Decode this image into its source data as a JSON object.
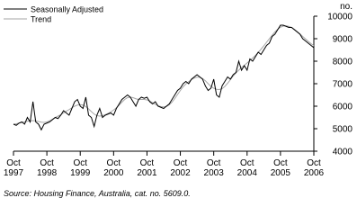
{
  "chart_data": {
    "type": "line",
    "y_label": "no.",
    "source": "Source: Housing Finance, Australia, cat. no. 5609.0.",
    "x": [
      "1997-10",
      "1997-11",
      "1997-12",
      "1998-01",
      "1998-02",
      "1998-03",
      "1998-04",
      "1998-05",
      "1998-06",
      "1998-07",
      "1998-08",
      "1998-09",
      "1998-10",
      "1998-11",
      "1998-12",
      "1999-01",
      "1999-02",
      "1999-03",
      "1999-04",
      "1999-05",
      "1999-06",
      "1999-07",
      "1999-08",
      "1999-09",
      "1999-10",
      "1999-11",
      "1999-12",
      "2000-01",
      "2000-02",
      "2000-03",
      "2000-04",
      "2000-05",
      "2000-06",
      "2000-07",
      "2000-08",
      "2000-09",
      "2000-10",
      "2000-11",
      "2000-12",
      "2001-01",
      "2001-02",
      "2001-03",
      "2001-04",
      "2001-05",
      "2001-06",
      "2001-07",
      "2001-08",
      "2001-09",
      "2001-10",
      "2001-11",
      "2001-12",
      "2002-01",
      "2002-02",
      "2002-03",
      "2002-04",
      "2002-05",
      "2002-06",
      "2002-07",
      "2002-08",
      "2002-09",
      "2002-10",
      "2002-11",
      "2002-12",
      "2003-01",
      "2003-02",
      "2003-03",
      "2003-04",
      "2003-05",
      "2003-06",
      "2003-07",
      "2003-08",
      "2003-09",
      "2003-10",
      "2003-11",
      "2003-12",
      "2004-01",
      "2004-02",
      "2004-03",
      "2004-04",
      "2004-05",
      "2004-06",
      "2004-07",
      "2004-08",
      "2004-09",
      "2004-10",
      "2004-11",
      "2004-12",
      "2005-01",
      "2005-02",
      "2005-03",
      "2005-04",
      "2005-05",
      "2005-06",
      "2005-07",
      "2005-08",
      "2005-09",
      "2005-10",
      "2005-11",
      "2005-12",
      "2006-01",
      "2006-02",
      "2006-03",
      "2006-04",
      "2006-05",
      "2006-06",
      "2006-07",
      "2006-08",
      "2006-09",
      "2006-10"
    ],
    "series": [
      {
        "name": "Seasonally Adjusted",
        "color": "#000000",
        "values": [
          5200,
          5150,
          5250,
          5300,
          5200,
          5500,
          5300,
          6200,
          5300,
          5200,
          4950,
          5200,
          5250,
          5300,
          5400,
          5500,
          5450,
          5600,
          5800,
          5700,
          5600,
          5900,
          6200,
          6300,
          6000,
          5900,
          6400,
          5600,
          5500,
          5100,
          5600,
          5900,
          5500,
          5600,
          5650,
          5700,
          5600,
          5900,
          6100,
          6300,
          6400,
          6500,
          6400,
          6200,
          6000,
          6300,
          6400,
          6350,
          6400,
          6200,
          6100,
          6200,
          6000,
          5950,
          5900,
          6000,
          6100,
          6300,
          6500,
          6700,
          6800,
          7000,
          7100,
          7000,
          7200,
          7300,
          7400,
          7300,
          7200,
          6900,
          6700,
          6800,
          7200,
          6500,
          6400,
          6900,
          7100,
          7300,
          7200,
          7400,
          7500,
          8000,
          7600,
          7800,
          7600,
          8100,
          8000,
          8200,
          8400,
          8300,
          8500,
          8700,
          8800,
          9100,
          9200,
          9400,
          9600,
          9600,
          9550,
          9500,
          9500,
          9400,
          9300,
          9200,
          9000,
          8900,
          8800,
          8700,
          8600
        ]
      },
      {
        "name": "Trend",
        "color": "#a6a6a6",
        "values": [
          5200,
          5220,
          5250,
          5280,
          5300,
          5330,
          5350,
          5360,
          5350,
          5320,
          5290,
          5280,
          5300,
          5350,
          5420,
          5500,
          5560,
          5620,
          5700,
          5780,
          5850,
          5930,
          6000,
          6050,
          6070,
          6050,
          5980,
          5880,
          5760,
          5650,
          5580,
          5560,
          5580,
          5620,
          5680,
          5750,
          5830,
          5930,
          6050,
          6180,
          6300,
          6380,
          6400,
          6380,
          6330,
          6300,
          6300,
          6300,
          6280,
          6230,
          6160,
          6080,
          6020,
          5980,
          5970,
          5990,
          6060,
          6180,
          6340,
          6520,
          6700,
          6860,
          6990,
          7090,
          7180,
          7250,
          7290,
          7290,
          7230,
          7130,
          7000,
          6880,
          6800,
          6750,
          6740,
          6780,
          6880,
          7020,
          7180,
          7340,
          7480,
          7600,
          7720,
          7820,
          7920,
          8030,
          8140,
          8260,
          8390,
          8530,
          8680,
          8840,
          9000,
          9150,
          9300,
          9420,
          9510,
          9560,
          9570,
          9550,
          9500,
          9420,
          9320,
          9210,
          9100,
          8990,
          8880,
          8780,
          8690
        ]
      }
    ],
    "xticks": [
      {
        "value": "1997-10",
        "label": "Oct 1997"
      },
      {
        "value": "1998-10",
        "label": "Oct 1998"
      },
      {
        "value": "1999-10",
        "label": "Oct 1999"
      },
      {
        "value": "2000-10",
        "label": "Oct 2000"
      },
      {
        "value": "2001-10",
        "label": "Oct 2001"
      },
      {
        "value": "2002-10",
        "label": "Oct 2002"
      },
      {
        "value": "2003-10",
        "label": "Oct 2003"
      },
      {
        "value": "2004-10",
        "label": "Oct 2004"
      },
      {
        "value": "2005-10",
        "label": "Oct 2005"
      },
      {
        "value": "2006-10",
        "label": "Oct 2006"
      }
    ],
    "ylim": [
      4000,
      10000
    ],
    "yticks": [
      4000,
      5000,
      6000,
      7000,
      8000,
      9000,
      10000
    ],
    "legend": "top-left"
  }
}
